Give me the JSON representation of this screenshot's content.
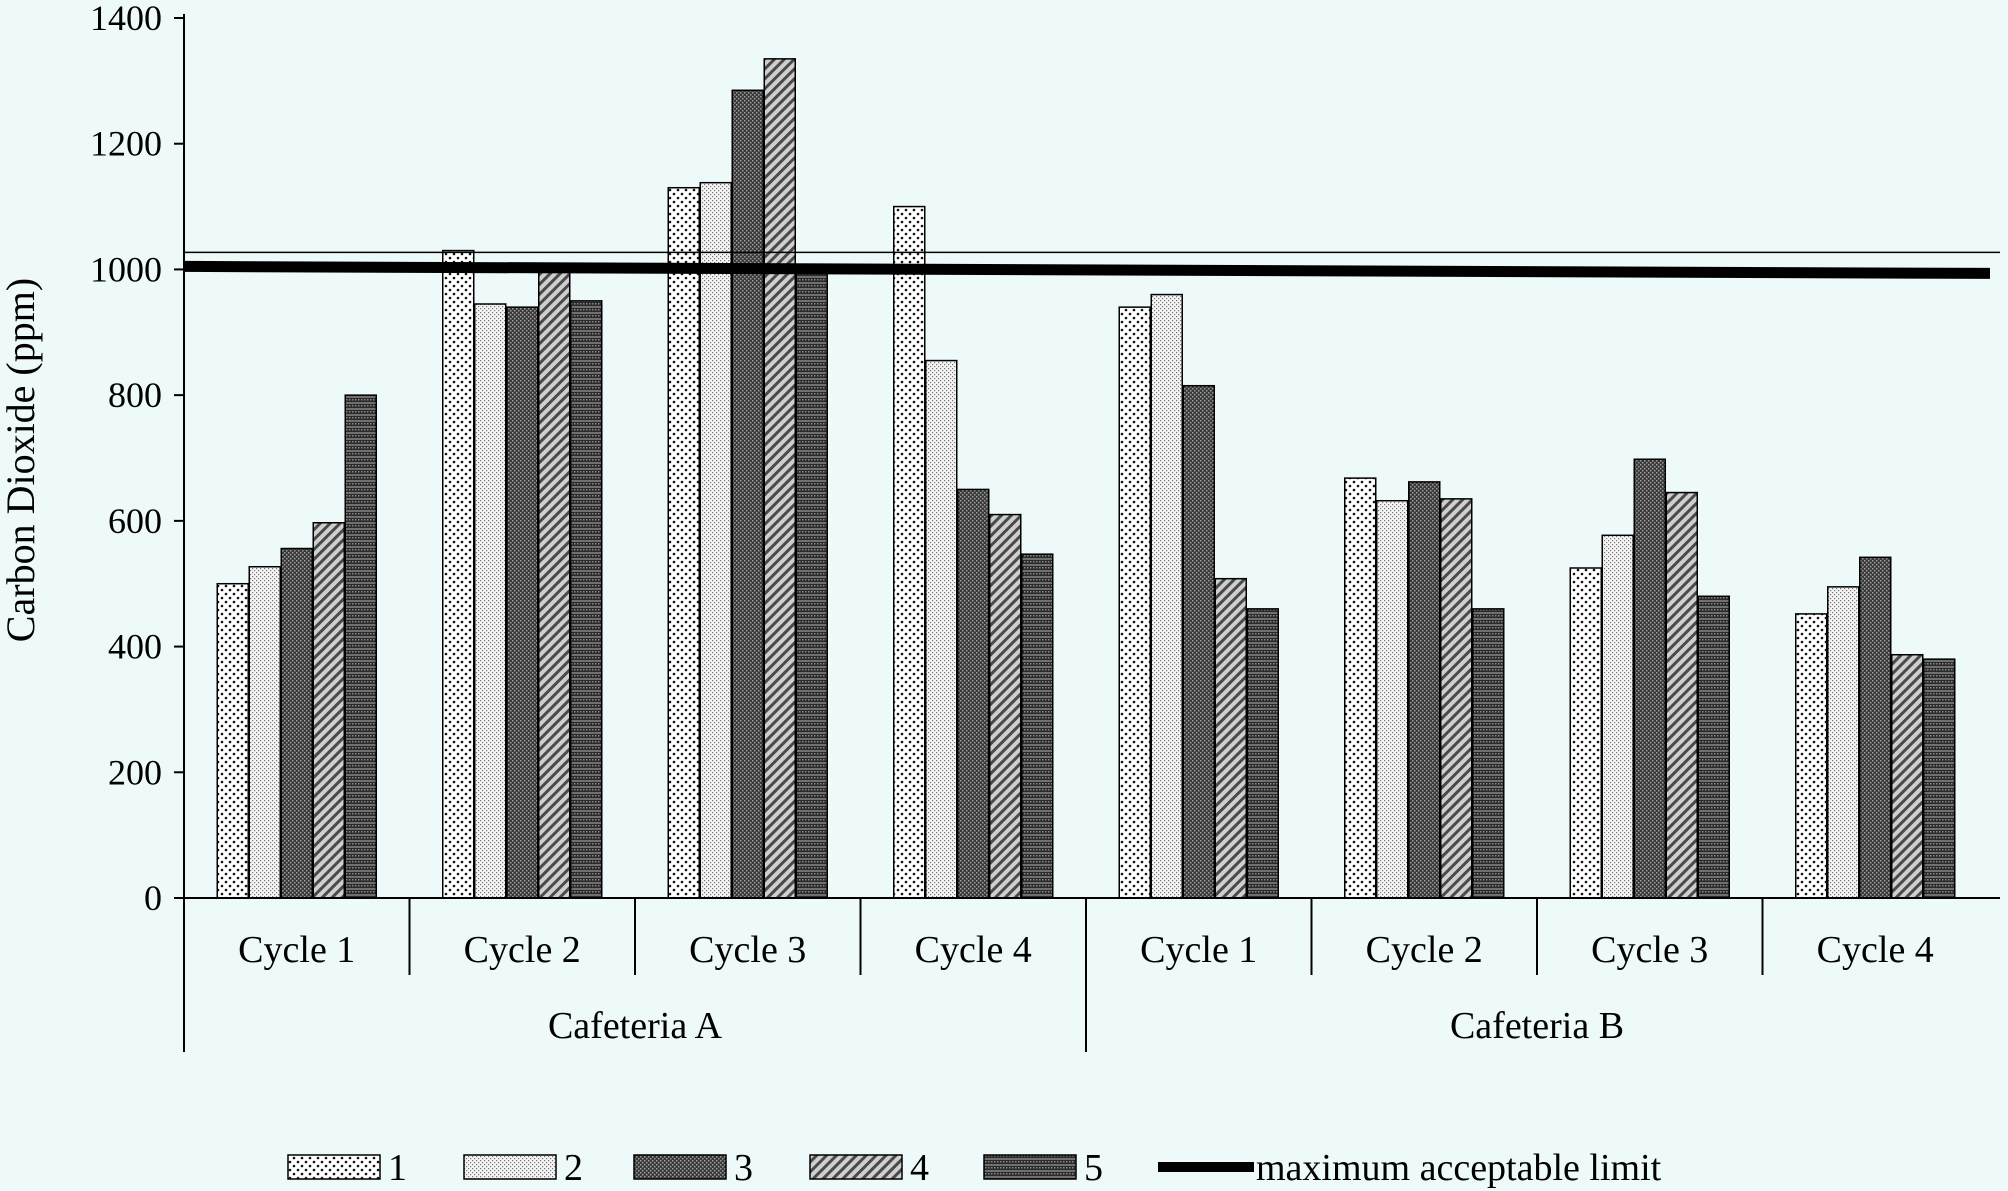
{
  "chart_data": {
    "type": "bar",
    "ylabel": "Carbon Dioxide (ppm)",
    "ylim": [
      0,
      1400
    ],
    "yticks": [
      "0",
      "200",
      "400",
      "600",
      "800",
      "1000",
      "1200",
      "1400"
    ],
    "groups": [
      {
        "name": "Cafeteria A",
        "categories": [
          "Cycle 1",
          "Cycle 2",
          "Cycle 3",
          "Cycle 4"
        ]
      },
      {
        "name": "Cafeteria B",
        "categories": [
          "Cycle 1",
          "Cycle 2",
          "Cycle 3",
          "Cycle 4"
        ]
      }
    ],
    "series": [
      {
        "name": "1",
        "values": [
          500,
          1030,
          1130,
          1100,
          940,
          668,
          525,
          452
        ]
      },
      {
        "name": "2",
        "values": [
          527,
          945,
          1138,
          855,
          960,
          632,
          577,
          495
        ]
      },
      {
        "name": "3",
        "values": [
          556,
          940,
          1285,
          650,
          815,
          662,
          698,
          542
        ]
      },
      {
        "name": "4",
        "values": [
          597,
          1000,
          1335,
          610,
          508,
          635,
          645,
          387
        ]
      },
      {
        "name": "5",
        "values": [
          800,
          950,
          995,
          547,
          460,
          460,
          480,
          380
        ]
      }
    ],
    "limit": {
      "name": "maximum acceptable limit",
      "value": 1000
    },
    "legend_position": "bottom",
    "grid": false
  },
  "colors": {
    "background": "#eef9f9",
    "axis": "#000000",
    "limit_line": "#000000"
  }
}
